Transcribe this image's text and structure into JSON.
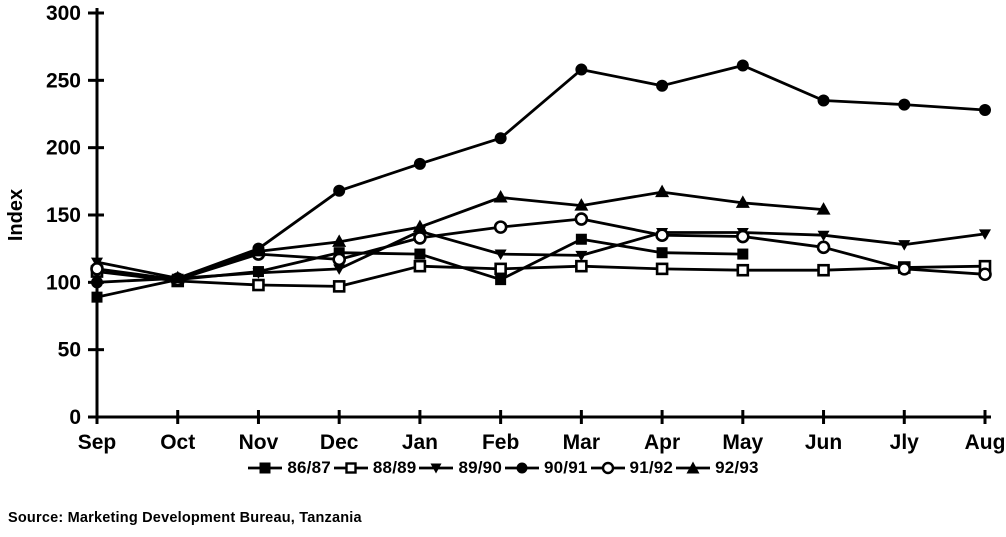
{
  "chart_data": {
    "type": "line",
    "title": "",
    "xlabel": "",
    "ylabel": "Index",
    "ylim": [
      0,
      300
    ],
    "yticks": [
      0,
      50,
      100,
      150,
      200,
      250,
      300
    ],
    "grid": false,
    "legend_position": "bottom-center",
    "line_color": "#000000",
    "background_color": "#ffffff",
    "categories": [
      "Sep",
      "Oct",
      "Nov",
      "Dec",
      "Jan",
      "Feb",
      "Mar",
      "Apr",
      "May",
      "Jun",
      "Jly",
      "Aug"
    ],
    "series": [
      {
        "name": "86/87",
        "marker": "filled-square",
        "values": [
          89,
          102,
          108,
          122,
          121,
          102,
          132,
          122,
          121,
          null,
          null,
          null
        ]
      },
      {
        "name": "88/89",
        "marker": "open-square",
        "values": [
          108,
          101,
          98,
          97,
          112,
          110,
          112,
          110,
          109,
          109,
          111,
          112
        ]
      },
      {
        "name": "89/90",
        "marker": "filled-down-triangle",
        "values": [
          115,
          103,
          107,
          110,
          138,
          121,
          120,
          137,
          137,
          135,
          128,
          136
        ]
      },
      {
        "name": "90/91",
        "marker": "filled-circle",
        "values": [
          100,
          103,
          125,
          168,
          188,
          207,
          258,
          246,
          261,
          235,
          232,
          228
        ]
      },
      {
        "name": "91/92",
        "marker": "open-circle",
        "values": [
          110,
          102,
          121,
          117,
          133,
          141,
          147,
          135,
          134,
          126,
          110,
          106
        ]
      },
      {
        "name": "92/93",
        "marker": "filled-triangle",
        "values": [
          null,
          103,
          123,
          130,
          141,
          163,
          157,
          167,
          159,
          154,
          null,
          null
        ]
      }
    ]
  },
  "source": "Source:  Marketing Development Bureau, Tanzania"
}
